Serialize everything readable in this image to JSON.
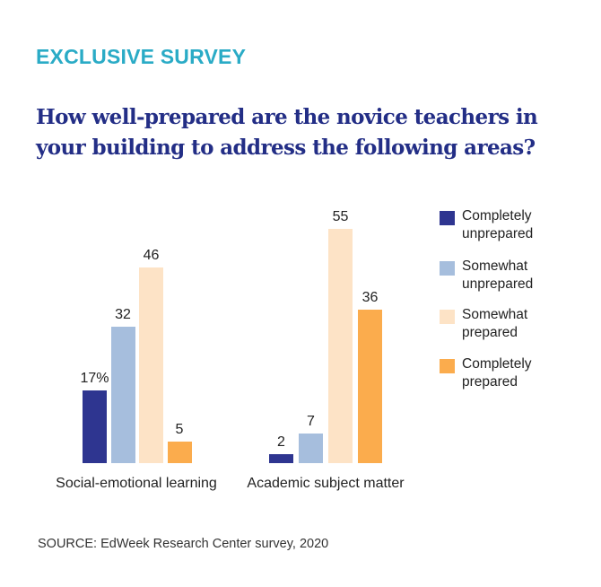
{
  "header": {
    "kicker": "EXCLUSIVE SURVEY",
    "title": "How well-prepared are the novice teachers in your building to address the following areas?"
  },
  "colors": {
    "kicker": "#2aabc6",
    "title": "#232e86",
    "completely_unprepared": "#2e3590",
    "somewhat_unprepared": "#a6bedd",
    "somewhat_prepared": "#fde3c6",
    "completely_prepared": "#fbac4d"
  },
  "legend": [
    {
      "label": "Completely unprepared",
      "color": "#2e3590"
    },
    {
      "label": "Somewhat unprepared",
      "color": "#a6bedd"
    },
    {
      "label": "Somewhat prepared",
      "color": "#fde3c6"
    },
    {
      "label": "Completely prepared",
      "color": "#fbac4d"
    }
  ],
  "groups": [
    {
      "label": "Social-emotional learning",
      "labels_text": [
        "17%",
        "32",
        "46",
        "5"
      ]
    },
    {
      "label": "Academic subject matter",
      "labels_text": [
        "2",
        "7",
        "55",
        "36"
      ]
    }
  ],
  "footer": {
    "source": "SOURCE: EdWeek Research Center survey, 2020"
  },
  "chart_data": {
    "type": "bar",
    "title": "How well-prepared are the novice teachers in your building to address the following areas?",
    "subtitle": "EXCLUSIVE SURVEY",
    "categories": [
      "Social-emotional learning",
      "Academic subject matter"
    ],
    "series": [
      {
        "name": "Completely unprepared",
        "values": [
          17,
          2
        ],
        "color": "#2e3590"
      },
      {
        "name": "Somewhat unprepared",
        "values": [
          32,
          7
        ],
        "color": "#a6bedd"
      },
      {
        "name": "Somewhat prepared",
        "values": [
          46,
          55
        ],
        "color": "#fde3c6"
      },
      {
        "name": "Completely prepared",
        "values": [
          5,
          36
        ],
        "color": "#fbac4d"
      }
    ],
    "unit": "%",
    "xlabel": "",
    "ylabel": "",
    "ylim": [
      0,
      55
    ],
    "grid": false,
    "legend_position": "right",
    "source": "SOURCE: EdWeek Research Center survey, 2020"
  }
}
